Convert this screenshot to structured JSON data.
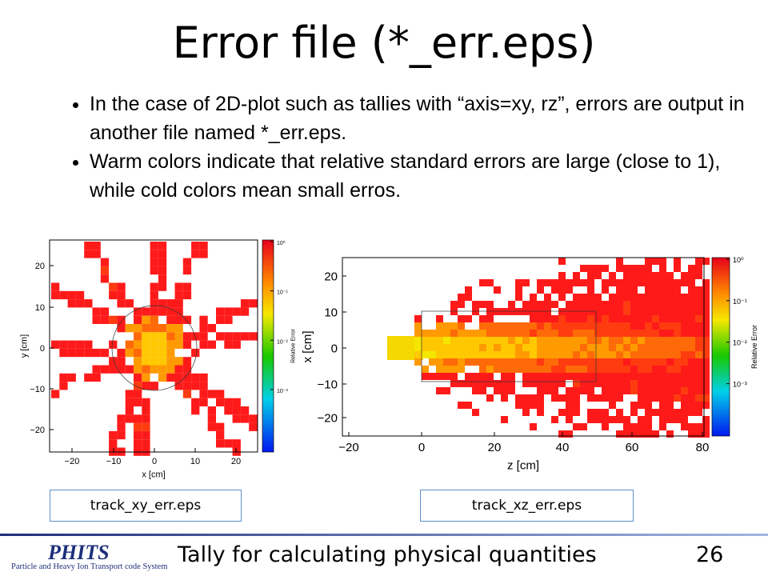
{
  "title": "Error file (*_err.eps)",
  "bullets": [
    "In the case of 2D-plot such as tallies with “axis=xy, rz”, errors are output in another file named *_err.eps.",
    "Warm colors indicate that relative standard errors are large (close to 1), while cold colors mean small erros."
  ],
  "figures": [
    {
      "xlabel": "x [cm]",
      "ylabel": "y [cm]",
      "xticks": [
        "−20",
        "−10",
        "0",
        "10",
        "20"
      ],
      "yticks": [
        "20",
        "10",
        "0",
        "−10",
        "−20"
      ],
      "colorbar_label": "Relative Error",
      "colorbar_ticks": [
        "10⁰",
        "10⁻¹",
        "10⁻²",
        "10⁻³"
      ],
      "caption": "track_xy_err.eps"
    },
    {
      "xlabel": "z [cm]",
      "ylabel": "x [cm]",
      "xticks": [
        "−20",
        "0",
        "20",
        "40",
        "60",
        "80"
      ],
      "yticks": [
        "20",
        "10",
        "0",
        "−10",
        "−20"
      ],
      "colorbar_label": "Relative Error",
      "colorbar_ticks": [
        "10⁰",
        "10⁻¹",
        "10⁻²",
        "10⁻³"
      ],
      "caption": "track_xz_err.eps"
    }
  ],
  "footer": {
    "logo": "PHITS",
    "logo_subtitle": "Particle and Heavy Ion Transport code System",
    "text": "Tally for calculating physical quantities",
    "page": "26"
  }
}
